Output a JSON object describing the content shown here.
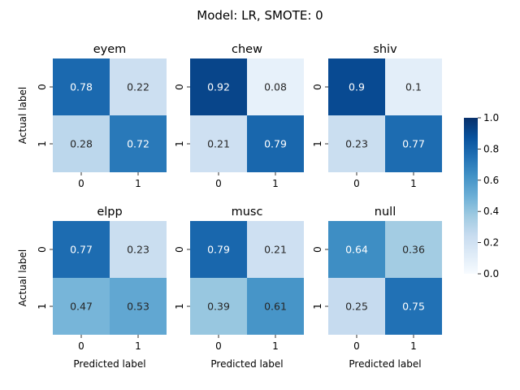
{
  "figure_title": "Model: LR, SMOTE: 0",
  "chart_data": {
    "type": "heatmap",
    "title": "Model: LR, SMOTE: 0",
    "xlabel": "Predicted label",
    "ylabel": "Actual label",
    "row_labels": [
      "0",
      "1"
    ],
    "col_labels": [
      "0",
      "1"
    ],
    "colormap": "Blues",
    "vmin": 0.0,
    "vmax": 1.0,
    "colorbar_ticks": [
      "0.0",
      "0.2",
      "0.4",
      "0.6",
      "0.8",
      "1.0"
    ],
    "panels": [
      {
        "name": "eyem",
        "matrix": [
          [
            0.78,
            0.22
          ],
          [
            0.28,
            0.72
          ]
        ]
      },
      {
        "name": "chew",
        "matrix": [
          [
            0.92,
            0.08
          ],
          [
            0.21,
            0.79
          ]
        ]
      },
      {
        "name": "shiv",
        "matrix": [
          [
            0.9,
            0.1
          ],
          [
            0.23,
            0.77
          ]
        ]
      },
      {
        "name": "elpp",
        "matrix": [
          [
            0.77,
            0.23
          ],
          [
            0.47,
            0.53
          ]
        ]
      },
      {
        "name": "musc",
        "matrix": [
          [
            0.79,
            0.21
          ],
          [
            0.39,
            0.61
          ]
        ]
      },
      {
        "name": "null",
        "matrix": [
          [
            0.64,
            0.36
          ],
          [
            0.25,
            0.75
          ]
        ]
      }
    ]
  }
}
